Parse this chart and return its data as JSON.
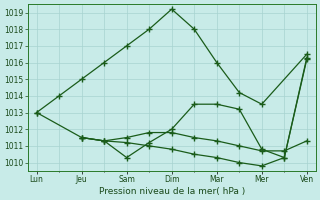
{
  "xlabel": "Pression niveau de la mer( hPa )",
  "bg_color": "#c8ebe8",
  "grid_color": "#a8d4d0",
  "line_color": "#1a5c1a",
  "ylim": [
    1009.5,
    1019.5
  ],
  "yticks": [
    1010,
    1011,
    1012,
    1013,
    1014,
    1015,
    1016,
    1017,
    1018,
    1019
  ],
  "xlim": [
    -0.2,
    6.2
  ],
  "xtick_pos": [
    0,
    1,
    2,
    3,
    4,
    5,
    6
  ],
  "xtick_labels": [
    "Lun",
    "Jeu",
    "Sam",
    "Dim",
    "Mar",
    "Mer",
    "Ven"
  ],
  "line1_x": [
    0,
    0.5,
    1.0,
    1.5,
    2.0,
    2.5,
    3.0,
    3.5,
    4.0,
    4.5,
    5.0,
    6.0
  ],
  "line1_y": [
    1013.0,
    1014.0,
    1015.0,
    1016.0,
    1017.0,
    1018.0,
    1019.2,
    1018.0,
    1016.0,
    1014.2,
    1013.5,
    1016.5
  ],
  "line2_x": [
    1.0,
    1.5,
    2.0,
    2.5,
    3.0,
    3.5,
    4.0,
    4.5,
    5.0,
    5.5,
    6.0
  ],
  "line2_y": [
    1011.5,
    1011.3,
    1011.5,
    1011.8,
    1011.8,
    1011.5,
    1011.3,
    1011.0,
    1010.7,
    1010.7,
    1011.3
  ],
  "line3_x": [
    1.0,
    1.5,
    2.0,
    2.5,
    3.0,
    3.5,
    4.0,
    4.5,
    5.0,
    5.5,
    6.0
  ],
  "line3_y": [
    1011.5,
    1011.3,
    1011.2,
    1011.0,
    1010.8,
    1010.5,
    1010.3,
    1010.0,
    1009.8,
    1010.3,
    1016.2
  ],
  "line4_x": [
    0,
    1.0,
    1.5,
    2.0,
    2.5,
    3.0,
    3.5,
    4.0,
    4.5,
    5.0,
    5.5,
    6.0
  ],
  "line4_y": [
    1013.0,
    1011.5,
    1011.3,
    1010.3,
    1011.2,
    1012.0,
    1013.5,
    1013.5,
    1013.2,
    1010.8,
    1010.3,
    1016.3
  ],
  "minor_xticks": [
    0,
    0.5,
    1.0,
    1.5,
    2.0,
    2.5,
    3.0,
    3.5,
    4.0,
    4.5,
    5.0,
    5.5,
    6.0
  ]
}
